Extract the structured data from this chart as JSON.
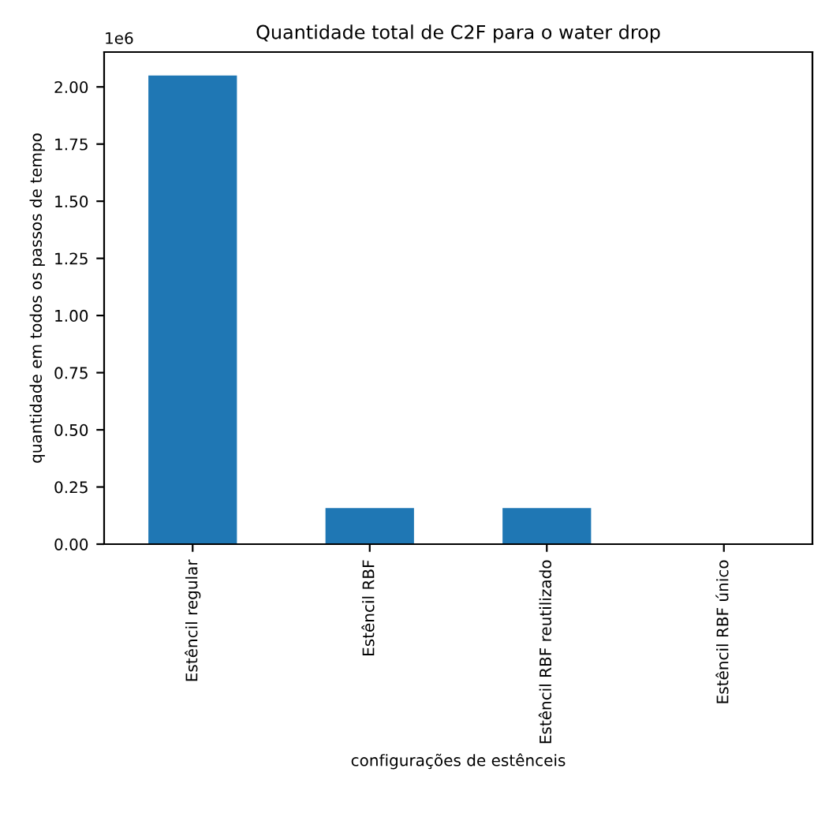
{
  "chart_data": {
    "type": "bar",
    "title": "Quantidade total de C2F para o water drop",
    "xlabel": "configurações de estênceis",
    "ylabel": "quantidade em todos os passos de tempo",
    "categories": [
      "Estêncil regular",
      "Estêncil RBF",
      "Estêncil RBF reutilizado",
      "Estêncil RBF único"
    ],
    "values": [
      2.05,
      0.158,
      0.158,
      0
    ],
    "color": "#1f77b4",
    "ylim": [
      0,
      2.1525
    ],
    "yticks": [
      {
        "value": 0,
        "label": "0.00"
      },
      0.25,
      {
        "value": 0.5,
        "label": "0.50"
      },
      0.75,
      {
        "value": 1,
        "label": "1.00"
      },
      1.25,
      {
        "value": 1.5,
        "label": "1.50"
      },
      1.75,
      {
        "value": 2,
        "label": "2.00"
      }
    ],
    "annotations": [
      "1e6"
    ],
    "grid": false
  }
}
